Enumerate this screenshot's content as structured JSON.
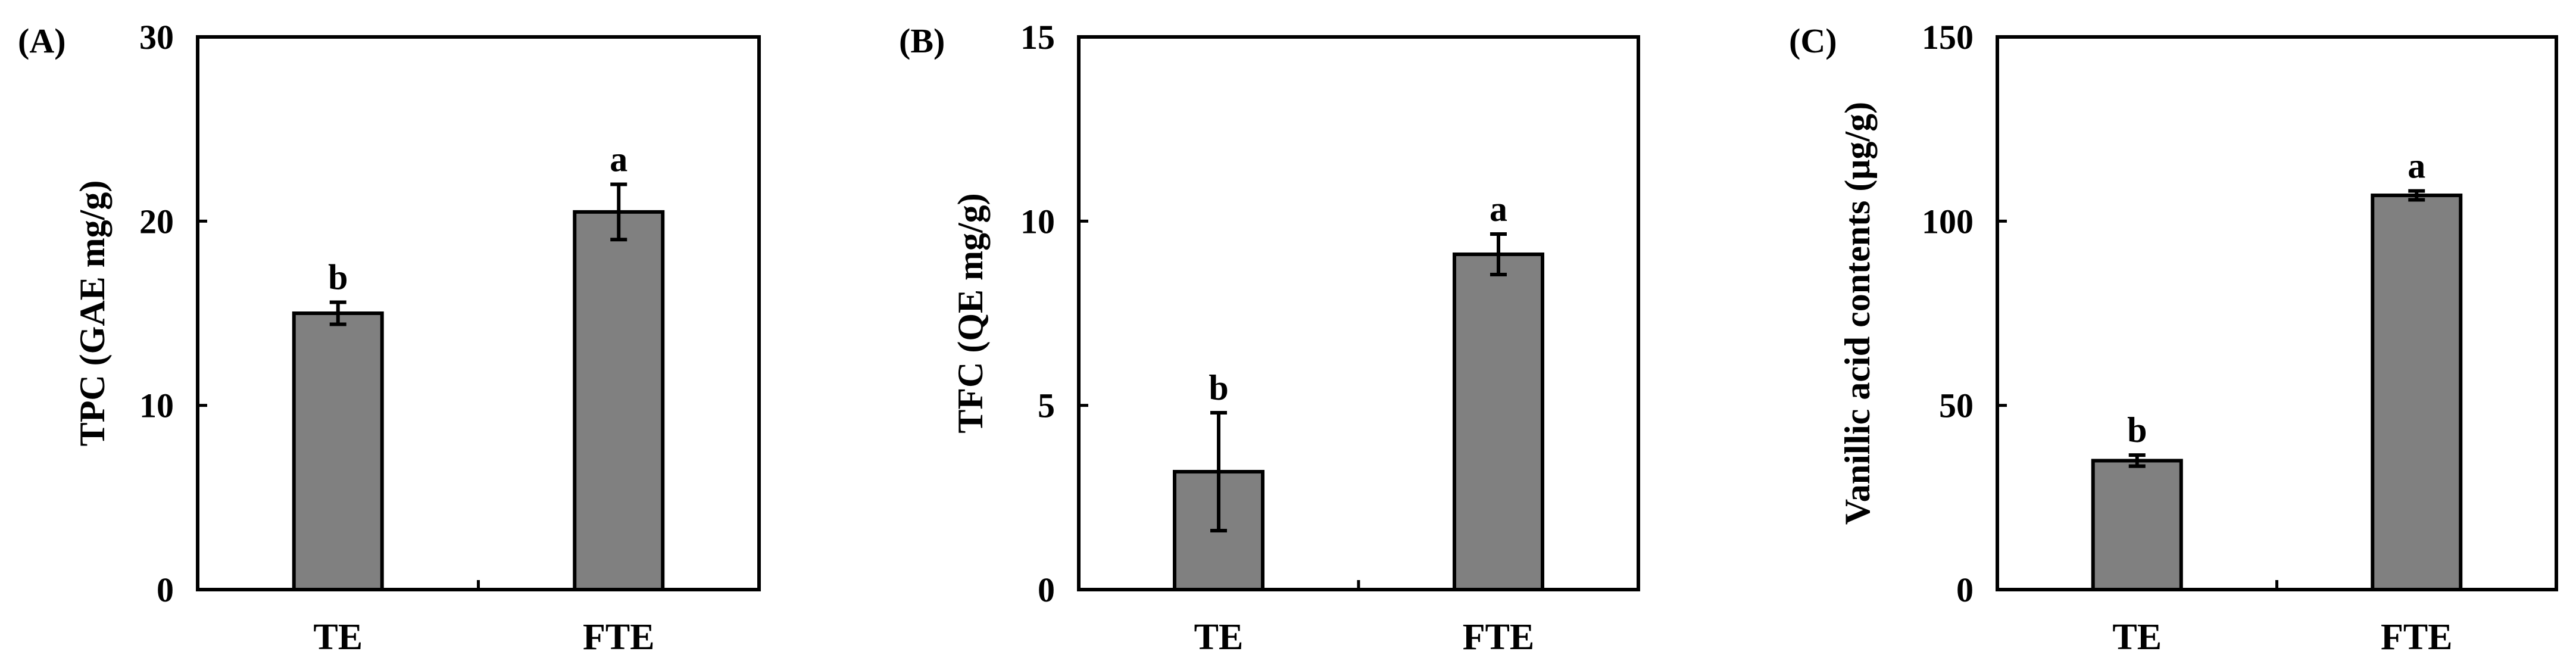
{
  "chart_data": [
    {
      "type": "bar",
      "panel_label": "(A)",
      "categories": [
        "TE",
        "FTE"
      ],
      "values": [
        15.0,
        20.5
      ],
      "errors": [
        0.6,
        1.5
      ],
      "significance": [
        "b",
        "a"
      ],
      "ylabel": "TPC (GAE mg/g)",
      "ylim": [
        0,
        30
      ],
      "yticks": [
        "0",
        "10",
        "20",
        "30"
      ],
      "grid": false,
      "bar_color": "#808080"
    },
    {
      "type": "bar",
      "panel_label": "(B)",
      "categories": [
        "TE",
        "FTE"
      ],
      "values": [
        3.2,
        9.1
      ],
      "errors": [
        1.6,
        0.55
      ],
      "significance": [
        "b",
        "a"
      ],
      "ylabel": "TFC (QE mg/g)",
      "ylim": [
        0,
        15
      ],
      "yticks": [
        "0",
        "5",
        "10",
        "15"
      ],
      "grid": false,
      "bar_color": "#808080"
    },
    {
      "type": "bar",
      "panel_label": "(C)",
      "categories": [
        "TE",
        "FTE"
      ],
      "values": [
        35.0,
        107.0
      ],
      "errors": [
        1.5,
        1.2
      ],
      "significance": [
        "b",
        "a"
      ],
      "ylabel": "Vanillic acid contents (μg/g)",
      "ylim": [
        0,
        150
      ],
      "yticks": [
        "0",
        "50",
        "100",
        "150"
      ],
      "grid": false,
      "bar_color": "#808080"
    }
  ]
}
